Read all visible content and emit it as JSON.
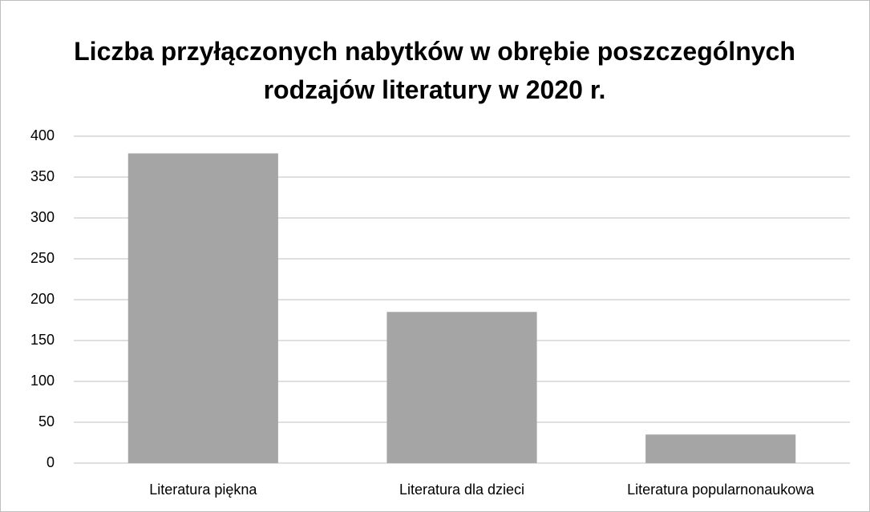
{
  "chart_data": {
    "type": "bar",
    "title": "Liczba przyłączonych nabytków w obrębie poszczególnych rodzajów literatury w 2020 r.",
    "categories": [
      "Literatura piękna",
      "Literatura dla dzieci",
      "Literatura popularnonaukowa"
    ],
    "values": [
      379,
      185,
      35
    ],
    "color": "#a5a5a5",
    "ylim": [
      0,
      400
    ],
    "yticks": [
      0,
      50,
      100,
      150,
      200,
      250,
      300,
      350,
      400
    ],
    "grid": true
  }
}
